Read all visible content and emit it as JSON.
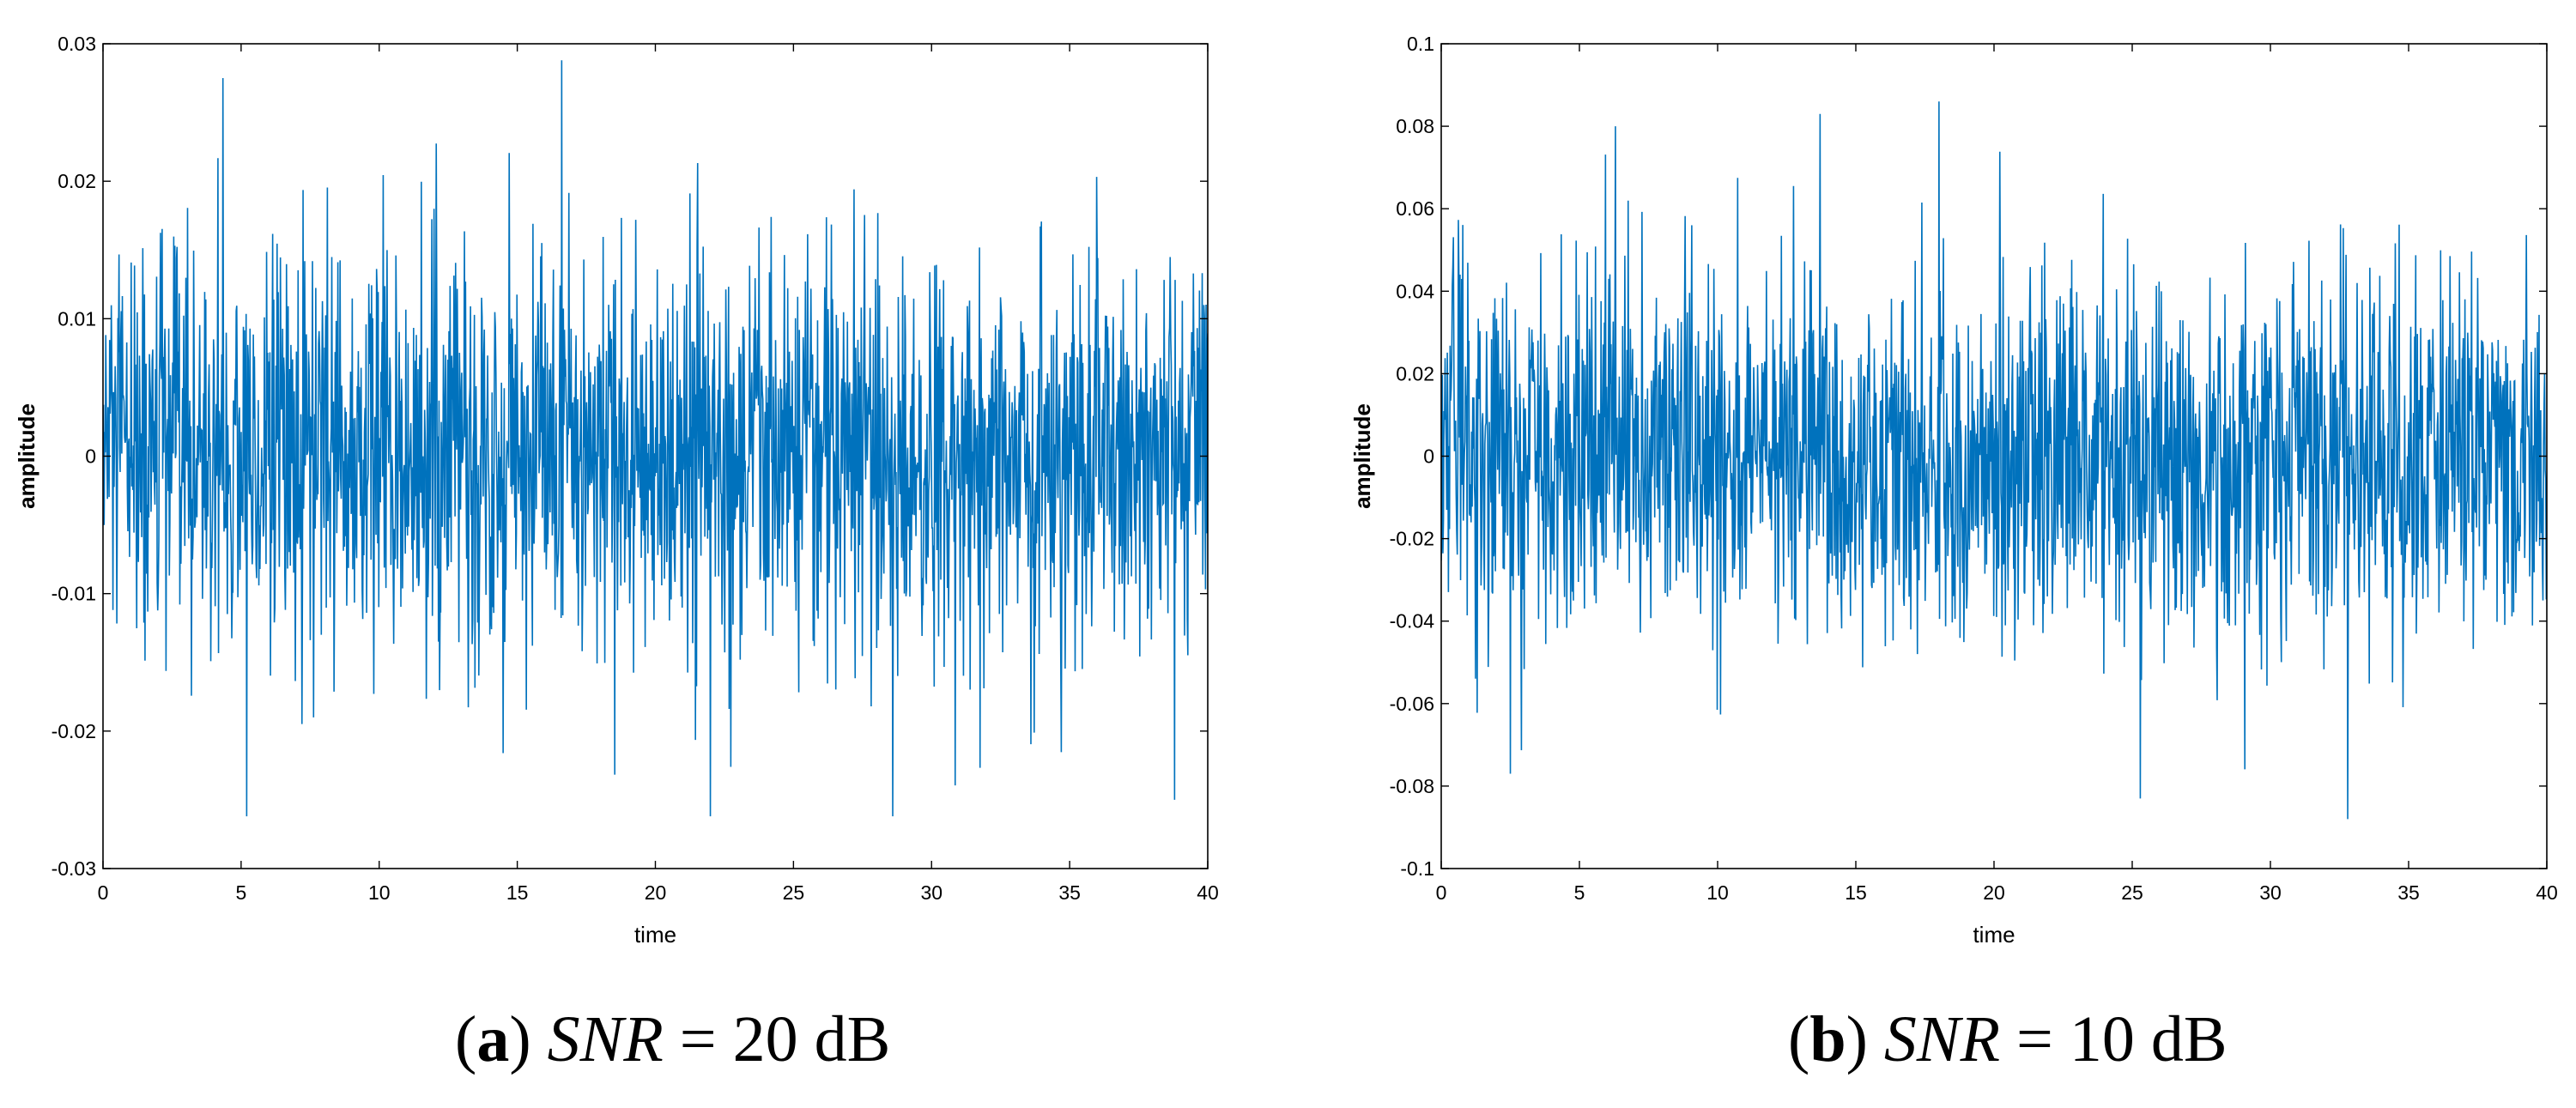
{
  "figure": {
    "panels": [
      {
        "caption": {
          "tag": "a",
          "snr_var": "SNR",
          "eq": "=",
          "value": "20",
          "unit": "dB"
        }
      },
      {
        "caption": {
          "tag": "b",
          "snr_var": "SNR",
          "eq": "=",
          "value": "10",
          "unit": "dB"
        }
      }
    ]
  },
  "chart_data": [
    {
      "type": "line",
      "title": "",
      "xlabel": "time",
      "ylabel": "amplitude",
      "xlim": [
        0,
        40
      ],
      "ylim": [
        -0.03,
        0.03
      ],
      "xticks": [
        "0",
        "5",
        "10",
        "15",
        "20",
        "25",
        "30",
        "35",
        "40"
      ],
      "yticks": [
        "-0.03",
        "-0.02",
        "-0.01",
        "0",
        "0.01",
        "0.02",
        "0.03"
      ],
      "grid": false,
      "color": "#0072BD",
      "signal": {
        "kind": "noise",
        "t_start": 0,
        "t_end": 40,
        "n_samples": 2000,
        "amplitude_rms": 0.0075,
        "visible_peaks": [
          {
            "t": 4.35,
            "y": 0.0275
          },
          {
            "t": 16.6,
            "y": 0.0288
          },
          {
            "t": 5.2,
            "y": -0.0262
          },
          {
            "t": 22.0,
            "y": -0.0262
          },
          {
            "t": 28.6,
            "y": -0.0262
          },
          {
            "t": 38.8,
            "y": -0.025
          }
        ]
      }
    },
    {
      "type": "line",
      "title": "",
      "xlabel": "time",
      "ylabel": "amplitude",
      "xlim": [
        0,
        40
      ],
      "ylim": [
        -0.1,
        0.1
      ],
      "xticks": [
        "0",
        "5",
        "10",
        "15",
        "20",
        "25",
        "30",
        "35",
        "40"
      ],
      "yticks": [
        "-0.1",
        "-0.08",
        "-0.06",
        "-0.04",
        "-0.02",
        "0",
        "0.02",
        "0.04",
        "0.06",
        "0.08",
        "0.1"
      ],
      "grid": false,
      "color": "#0072BD",
      "signal": {
        "kind": "noise",
        "t_start": 0,
        "t_end": 40,
        "n_samples": 2000,
        "amplitude_rms": 0.022,
        "visible_peaks": [
          {
            "t": 18.0,
            "y": 0.086
          },
          {
            "t": 13.7,
            "y": 0.083
          },
          {
            "t": 6.3,
            "y": 0.08
          },
          {
            "t": 32.8,
            "y": -0.088
          },
          {
            "t": 25.3,
            "y": -0.083
          },
          {
            "t": 2.5,
            "y": -0.077
          }
        ]
      }
    }
  ]
}
